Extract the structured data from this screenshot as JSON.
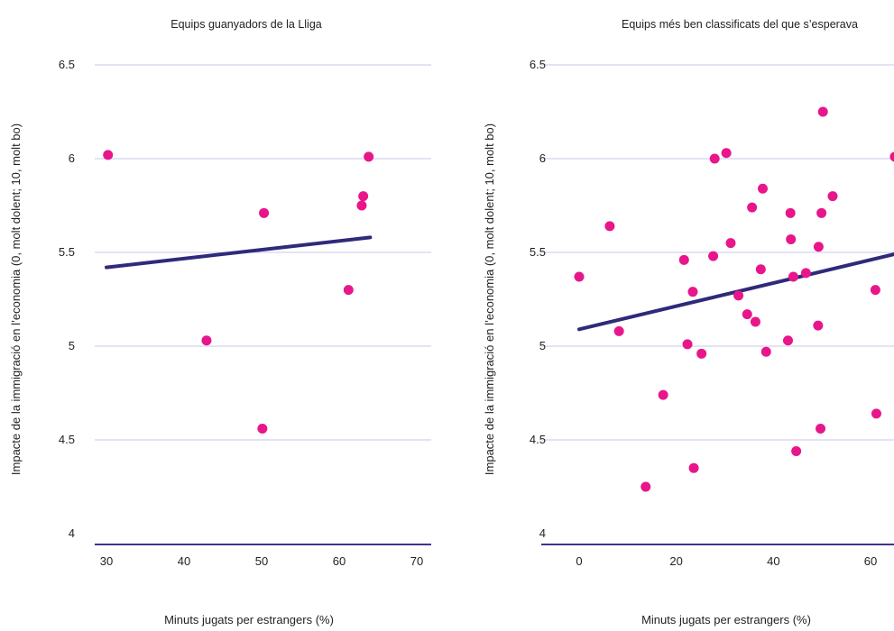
{
  "colors": {
    "point": "#e8168a",
    "trend": "#2f2a7a",
    "grid": "#c9c7ea",
    "baseline": "#3a3590",
    "text": "#222222"
  },
  "chart_data": [
    {
      "type": "scatter",
      "title": "Equips guanyadors de la Lliga",
      "xlabel": "Minuts jugats per estrangers (%)",
      "ylabel": "Impacte de la immigració en l’economia (0, molt dolent; 10, molt bo)",
      "xlim": [
        28,
        72
      ],
      "ylim": [
        3.94,
        6.55
      ],
      "x_ticks": [
        30,
        40,
        50,
        60,
        70
      ],
      "x_tick_labels": [
        "30",
        "40",
        "50",
        "60",
        "70"
      ],
      "y_ticks": [
        4,
        4.5,
        5,
        5.5,
        6,
        6.5
      ],
      "y_tick_labels": [
        "4",
        "4.5",
        "5",
        "5.5",
        "6",
        "6.5"
      ],
      "grid": true,
      "points": [
        {
          "x": 30.2,
          "y": 6.02
        },
        {
          "x": 42.9,
          "y": 5.03
        },
        {
          "x": 50.1,
          "y": 4.56
        },
        {
          "x": 50.3,
          "y": 5.71
        },
        {
          "x": 61.2,
          "y": 5.3
        },
        {
          "x": 62.9,
          "y": 5.75
        },
        {
          "x": 63.1,
          "y": 5.8
        },
        {
          "x": 63.8,
          "y": 6.01
        }
      ],
      "trendline": {
        "x": [
          30,
          64
        ],
        "y": [
          5.42,
          5.58
        ]
      }
    },
    {
      "type": "scatter",
      "title": "Equips més ben classificats del que s’esperava",
      "xlabel": "Minuts jugats per estrangers (%)",
      "ylabel": "Impacte de la immigració en l’economia (0, molt dolent; 10, molt bo)",
      "xlim": [
        -3,
        66
      ],
      "ylim": [
        3.94,
        6.55
      ],
      "x_ticks": [
        0,
        20,
        40,
        60
      ],
      "x_tick_labels": [
        "0",
        "20",
        "40",
        "60"
      ],
      "y_ticks": [
        4,
        4.5,
        5,
        5.5,
        6,
        6.5
      ],
      "y_tick_labels": [
        "4",
        "4.5",
        "5",
        "5.5",
        "6",
        "6.5"
      ],
      "grid": true,
      "points": [
        {
          "x": 0,
          "y": 5.37
        },
        {
          "x": 6.3,
          "y": 5.64
        },
        {
          "x": 8.2,
          "y": 5.08
        },
        {
          "x": 13.7,
          "y": 4.25
        },
        {
          "x": 17.3,
          "y": 4.74
        },
        {
          "x": 21.6,
          "y": 5.46
        },
        {
          "x": 22.3,
          "y": 5.01
        },
        {
          "x": 23.4,
          "y": 5.29
        },
        {
          "x": 23.6,
          "y": 4.35
        },
        {
          "x": 25.2,
          "y": 4.96
        },
        {
          "x": 27.6,
          "y": 5.48
        },
        {
          "x": 27.9,
          "y": 6.0
        },
        {
          "x": 30.3,
          "y": 6.03
        },
        {
          "x": 31.2,
          "y": 5.55
        },
        {
          "x": 32.8,
          "y": 5.27
        },
        {
          "x": 34.6,
          "y": 5.17
        },
        {
          "x": 35.6,
          "y": 5.74
        },
        {
          "x": 36.3,
          "y": 5.13
        },
        {
          "x": 37.4,
          "y": 5.41
        },
        {
          "x": 37.8,
          "y": 5.84
        },
        {
          "x": 38.5,
          "y": 4.97
        },
        {
          "x": 43.0,
          "y": 5.03
        },
        {
          "x": 43.5,
          "y": 5.71
        },
        {
          "x": 43.6,
          "y": 5.57
        },
        {
          "x": 44.1,
          "y": 5.37
        },
        {
          "x": 44.7,
          "y": 4.44
        },
        {
          "x": 46.7,
          "y": 5.39
        },
        {
          "x": 49.2,
          "y": 5.11
        },
        {
          "x": 49.3,
          "y": 5.53
        },
        {
          "x": 49.7,
          "y": 4.56
        },
        {
          "x": 49.9,
          "y": 5.71
        },
        {
          "x": 50.2,
          "y": 6.25
        },
        {
          "x": 52.2,
          "y": 5.8
        },
        {
          "x": 61.0,
          "y": 5.3
        },
        {
          "x": 61.2,
          "y": 4.64
        },
        {
          "x": 65.0,
          "y": 6.01
        }
      ],
      "trendline": {
        "x": [
          0,
          66
        ],
        "y": [
          5.09,
          5.49
        ]
      }
    }
  ]
}
